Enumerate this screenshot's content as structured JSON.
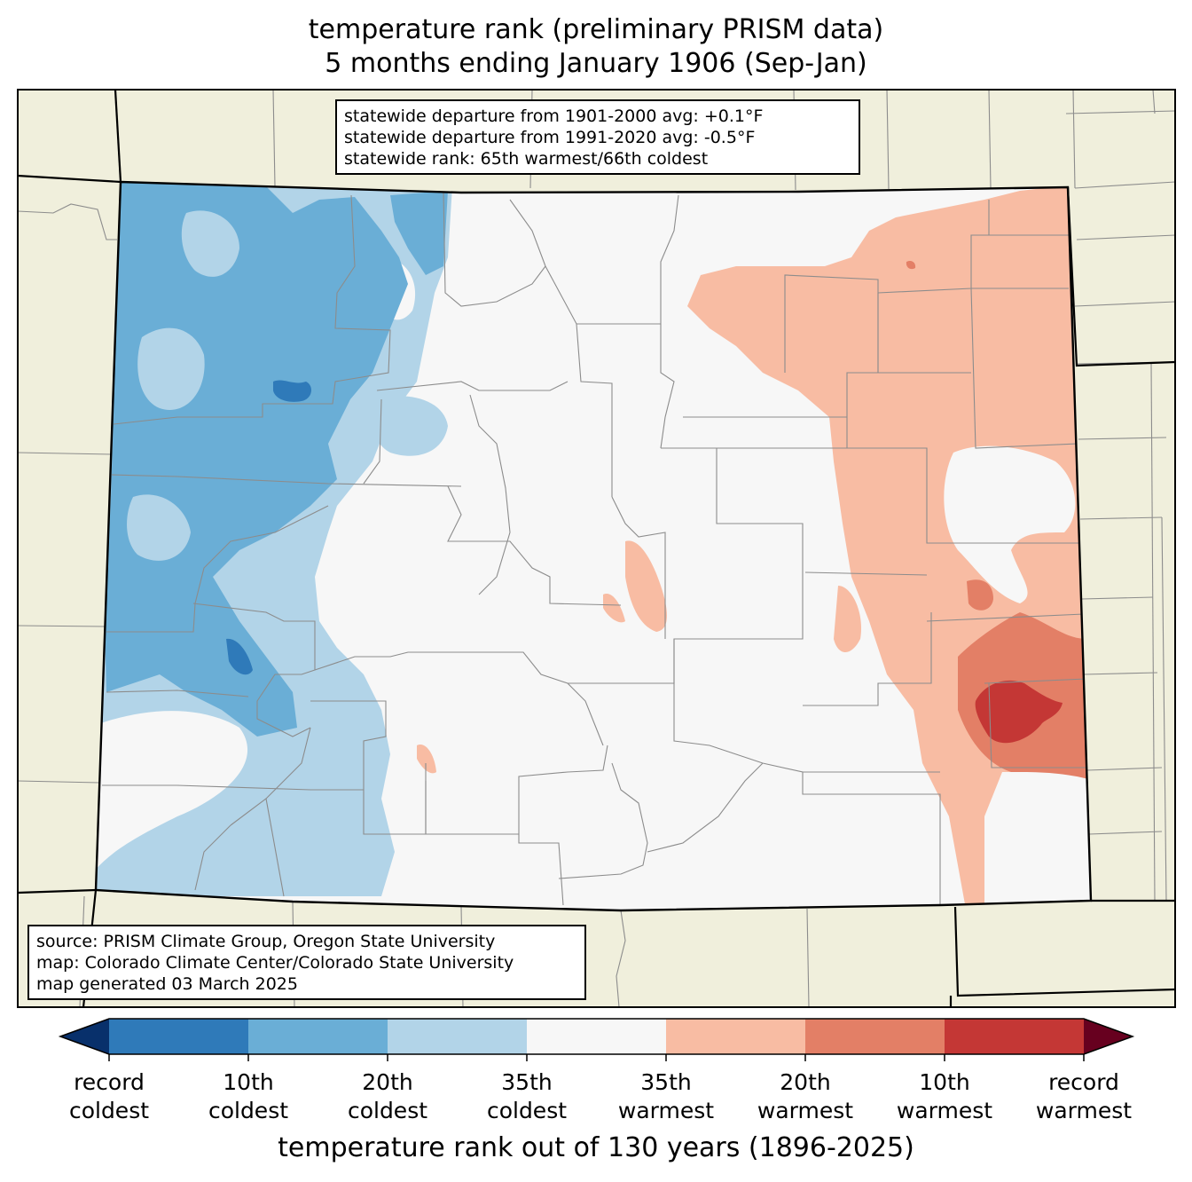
{
  "title": {
    "line1": "temperature rank (preliminary PRISM data)",
    "line2": "5 months ending January 1906 (Sep-Jan)"
  },
  "stats": {
    "line1": "statewide departure from 1901-2000 avg: +0.1°F",
    "line2": "statewide departure from 1991-2020 avg: -0.5°F",
    "line3": "statewide rank: 65th warmest/66th coldest"
  },
  "source": {
    "line1": "source: PRISM Climate Group, Oregon State University",
    "line2": "map: Colorado Climate Center/Colorado State University",
    "line3": "map generated 03 March 2025"
  },
  "colorbar": {
    "label": "temperature rank out of 130 years (1896-2025)",
    "colors": [
      "#08306b",
      "#2f7ab9",
      "#6aaed6",
      "#b2d4e8",
      "#f7f7f7",
      "#f8bca3",
      "#e37f66",
      "#c43735",
      "#67001f"
    ],
    "ticks": [
      {
        "line1": "record",
        "line2": "coldest"
      },
      {
        "line1": "10th",
        "line2": "coldest"
      },
      {
        "line1": "20th",
        "line2": "coldest"
      },
      {
        "line1": "35th",
        "line2": "coldest"
      },
      {
        "line1": "35th",
        "line2": "warmest"
      },
      {
        "line1": "20th",
        "line2": "warmest"
      },
      {
        "line1": "10th",
        "line2": "warmest"
      },
      {
        "line1": "record",
        "line2": "warmest"
      }
    ]
  },
  "map_colors": {
    "surround": "#f0efdc",
    "record_coldest": "#08306b",
    "coldest_10": "#2f7ab9",
    "coldest_20": "#6aaed6",
    "coldest_35": "#b2d4e8",
    "near_normal": "#f7f7f7",
    "warmest_35": "#f8bca3",
    "warmest_20": "#e37f66",
    "warmest_10": "#c43735",
    "record_warmest": "#67001f"
  }
}
